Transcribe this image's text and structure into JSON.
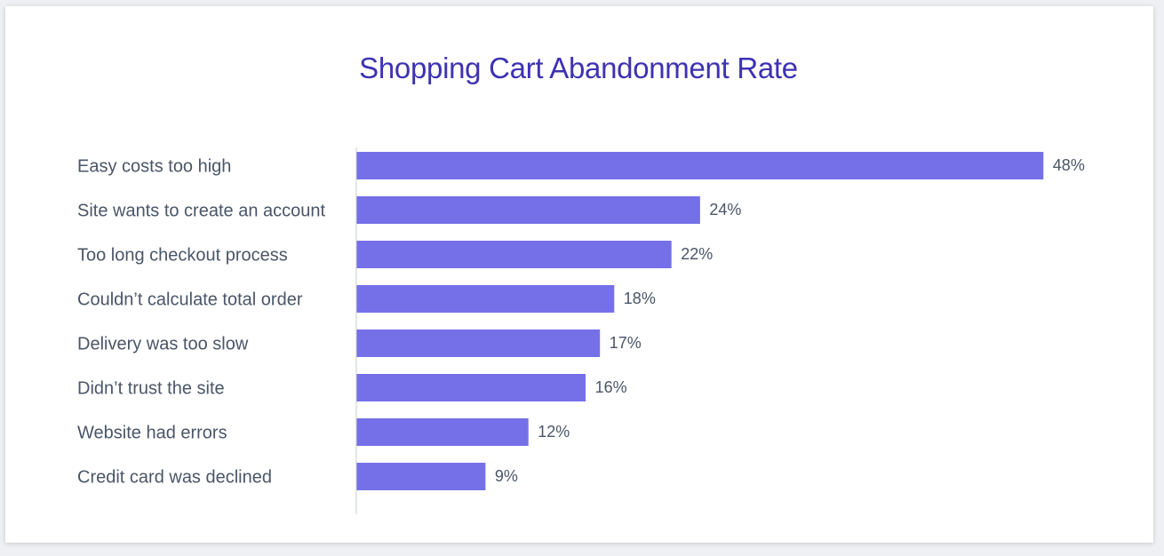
{
  "chart_data": {
    "type": "bar",
    "orientation": "horizontal",
    "title": "Shopping Cart Abandonment Rate",
    "xlabel": "",
    "ylabel": "",
    "categories": [
      "Easy costs too high",
      "Site wants to create an account",
      "Too long checkout process",
      "Couldn’t calculate total order",
      "Delivery was too slow",
      "Didn’t trust the site",
      "Website had errors",
      "Credit card was declined"
    ],
    "values": [
      48,
      24,
      22,
      18,
      17,
      16,
      12,
      9
    ],
    "value_labels": [
      "48%",
      "24%",
      "22%",
      "18%",
      "17%",
      "16%",
      "12%",
      "9%"
    ],
    "unit": "%",
    "grid": false,
    "legend": "none",
    "colors": {
      "bar": "#7570e8",
      "title": "#3d32b3",
      "text": "#4a5568",
      "axis": "#c9ccd2"
    }
  }
}
